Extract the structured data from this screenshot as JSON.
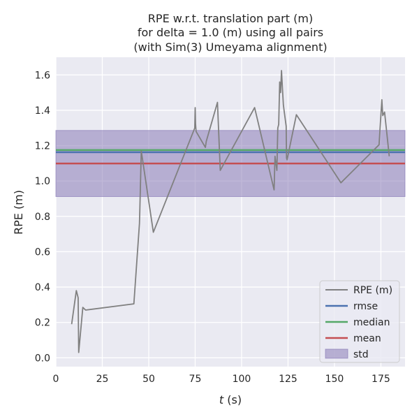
{
  "chart_data": {
    "type": "line",
    "title_lines": [
      "RPE w.r.t. translation part (m)",
      "for delta = 1.0 (m) using all pairs",
      "(with Sim(3) Umeyama alignment)"
    ],
    "xlabel_italic": "t",
    "xlabel_rest": " (s)",
    "ylabel": "RPE (m)",
    "xlim": [
      0,
      188
    ],
    "ylim": [
      -0.05,
      1.7
    ],
    "xticks": [
      0,
      25,
      50,
      75,
      100,
      125,
      150,
      175
    ],
    "yticks": [
      0.0,
      0.2,
      0.4,
      0.6,
      0.8,
      1.0,
      1.2,
      1.4,
      1.6
    ],
    "xtick_labels": [
      "0",
      "25",
      "50",
      "75",
      "100",
      "125",
      "150",
      "175"
    ],
    "ytick_labels": [
      "0.0",
      "0.2",
      "0.4",
      "0.6",
      "0.8",
      "1.0",
      "1.2",
      "1.4",
      "1.6"
    ],
    "grid": true,
    "legend_position": "lower-right",
    "series": [
      {
        "name": "RPE (m)",
        "color": "#808080",
        "x": [
          8.5,
          11,
          12,
          12.3,
          14.5,
          16,
          42,
          45,
          45.2,
          46,
          52.5,
          74.8,
          75,
          75.2,
          75.5,
          80.5,
          81,
          87,
          88.5,
          107,
          117.5,
          118,
          118.5,
          119,
          119.5,
          120,
          120.5,
          121,
          121.5,
          122,
          122.5,
          123,
          124,
          124.2,
          124.5,
          129.5,
          153.5,
          174,
          175.5,
          176,
          177,
          178,
          179.5
        ],
        "y": [
          0.19,
          0.38,
          0.34,
          0.03,
          0.285,
          0.27,
          0.305,
          0.76,
          0.83,
          1.17,
          0.71,
          1.3,
          1.415,
          1.325,
          1.28,
          1.19,
          1.225,
          1.445,
          1.06,
          1.415,
          0.95,
          1.14,
          1.1,
          1.06,
          1.3,
          1.32,
          1.56,
          1.5,
          1.625,
          1.52,
          1.43,
          1.39,
          1.31,
          1.13,
          1.12,
          1.375,
          0.99,
          1.205,
          1.46,
          1.37,
          1.39,
          1.29,
          1.14
        ]
      },
      {
        "name": "rmse",
        "color": "#4c72b0",
        "value": 1.163
      },
      {
        "name": "median",
        "color": "#55a868",
        "value": 1.175
      },
      {
        "name": "mean",
        "color": "#c44e52",
        "value": 1.099
      },
      {
        "name": "std",
        "color": "#8172b2",
        "lower": 0.912,
        "upper": 1.286
      }
    ]
  }
}
